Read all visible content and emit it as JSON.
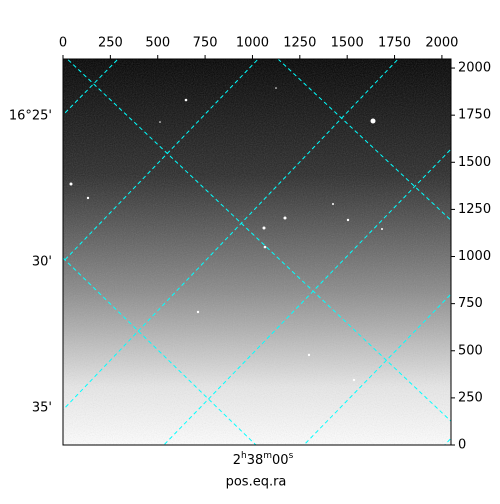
{
  "chart_data": {
    "type": "image",
    "xlim": [
      0,
      2048
    ],
    "ylim": [
      0,
      2048
    ],
    "xticks": [
      0,
      250,
      500,
      750,
      1000,
      1250,
      1500,
      1750,
      2000
    ],
    "yticks": [
      0,
      250,
      500,
      750,
      1000,
      1250,
      1500,
      1750,
      2000
    ],
    "dec_labels": [
      "16°25'",
      "30'",
      "35'"
    ],
    "ra_label_parts": [
      "2",
      "h",
      "38",
      "m",
      "00",
      "s"
    ],
    "xlabel": "pos.eq.ra",
    "grid_color": "#00ffff"
  }
}
